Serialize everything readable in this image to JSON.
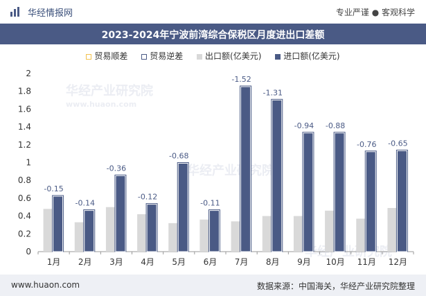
{
  "header": {
    "brand": "华经情报网",
    "slogan": "专业严谨 ● 客观科学"
  },
  "title": "2023-2024年宁波前湾综合保税区月度进出口差额",
  "legend": [
    {
      "label": "贸易顺差",
      "color": "#f2c14e"
    },
    {
      "label": "贸易逆差",
      "color": "#4a5a85"
    },
    {
      "label": "出口额(亿美元)",
      "color": "#d9d9d9"
    },
    {
      "label": "进口额(亿美元)",
      "color": "#4a5a85"
    }
  ],
  "watermark": "华经产业研究院",
  "watermark_url": "www.huaon.com",
  "footer": {
    "website": "www.huaon.com",
    "source": "数据来源：中国海关，华经产业研究院整理"
  },
  "chart_data": {
    "type": "bar",
    "categories": [
      "1月",
      "2月",
      "3月",
      "4月",
      "5月",
      "6月",
      "7月",
      "8月",
      "9月",
      "10月",
      "11月",
      "12月"
    ],
    "series": [
      {
        "name": "出口额(亿美元)",
        "values": [
          0.48,
          0.33,
          0.5,
          0.42,
          0.32,
          0.36,
          0.34,
          0.4,
          0.4,
          0.46,
          0.37,
          0.49
        ]
      },
      {
        "name": "进口额(亿美元)",
        "values": [
          0.63,
          0.47,
          0.86,
          0.54,
          1.0,
          0.47,
          1.86,
          1.71,
          1.34,
          1.34,
          1.13,
          1.14
        ]
      }
    ],
    "balance_labels": [
      "-0.15",
      "-0.14",
      "-0.36",
      "-0.12",
      "-0.68",
      "-0.11",
      "-1.52",
      "-1.31",
      "-0.94",
      "-0.88",
      "-0.76",
      "-0.65"
    ],
    "ylim": [
      0,
      2
    ],
    "yticks": [
      "0",
      "0.2",
      "0.4",
      "0.6",
      "0.8",
      "1",
      "1.2",
      "1.4",
      "1.6",
      "1.8",
      "2"
    ],
    "colors": {
      "export": "#d9d9d9",
      "import": "#4a5a85",
      "import_outline": "#ffffff"
    }
  }
}
